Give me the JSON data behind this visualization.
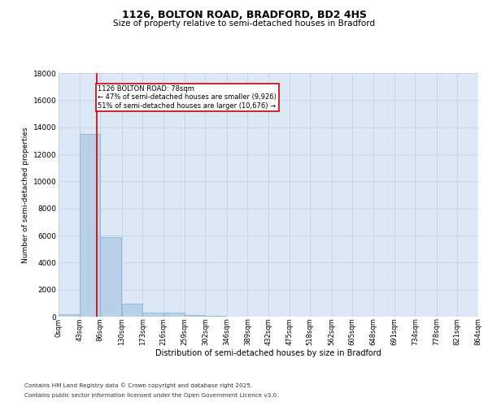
{
  "title1": "1126, BOLTON ROAD, BRADFORD, BD2 4HS",
  "title2": "Size of property relative to semi-detached houses in Bradford",
  "xlabel": "Distribution of semi-detached houses by size in Bradford",
  "ylabel": "Number of semi-detached properties",
  "bar_color": "#b8d0e8",
  "bar_edge_color": "#7aafd4",
  "grid_color": "#c8d4e8",
  "annotation_box_color": "#cc0000",
  "annotation_line1": "1126 BOLTON ROAD: 78sqm",
  "annotation_line2": "← 47% of semi-detached houses are smaller (9,926)",
  "annotation_line3": "51% of semi-detached houses are larger (10,676) →",
  "property_line_color": "#cc0000",
  "property_value": 78,
  "footnote1": "Contains HM Land Registry data © Crown copyright and database right 2025.",
  "footnote2": "Contains public sector information licensed under the Open Government Licence v3.0.",
  "bin_edges": [
    0,
    43,
    86,
    130,
    173,
    216,
    259,
    302,
    346,
    389,
    432,
    475,
    518,
    562,
    605,
    648,
    691,
    734,
    778,
    821,
    864
  ],
  "bin_labels": [
    "0sqm",
    "43sqm",
    "86sqm",
    "130sqm",
    "173sqm",
    "216sqm",
    "259sqm",
    "302sqm",
    "346sqm",
    "389sqm",
    "432sqm",
    "475sqm",
    "518sqm",
    "562sqm",
    "605sqm",
    "648sqm",
    "691sqm",
    "734sqm",
    "778sqm",
    "821sqm",
    "864sqm"
  ],
  "bar_heights": [
    200,
    13500,
    5900,
    950,
    320,
    300,
    150,
    60,
    0,
    0,
    0,
    0,
    0,
    0,
    0,
    0,
    0,
    0,
    0,
    0
  ],
  "ylim": [
    0,
    18000
  ],
  "yticks": [
    0,
    2000,
    4000,
    6000,
    8000,
    10000,
    12000,
    14000,
    16000,
    18000
  ],
  "background_color": "#ffffff",
  "plot_bg_color": "#dce8f5"
}
